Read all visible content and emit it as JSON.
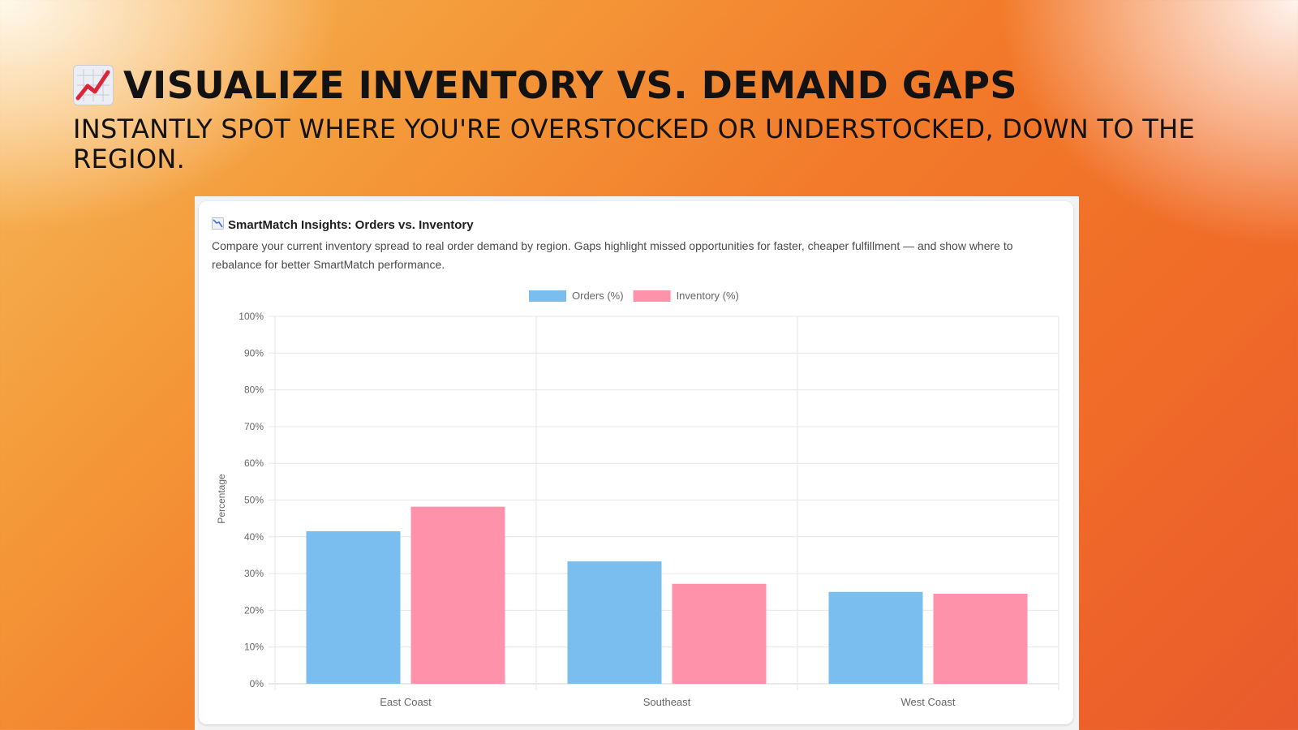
{
  "headline": {
    "icon": "chart-increasing-icon",
    "title": "VISUALIZE INVENTORY VS. DEMAND GAPS",
    "subtitle": "INSTANTLY SPOT WHERE YOU'RE OVERSTOCKED OR UNDERSTOCKED, DOWN TO THE REGION."
  },
  "card": {
    "icon": "chart-decreasing-icon",
    "title": "SmartMatch Insights: Orders vs. Inventory",
    "description": "Compare your current inventory spread to real order demand by region. Gaps highlight missed opportunities for faster, cheaper fulfillment — and show where to rebalance for better SmartMatch performance."
  },
  "chart_data": {
    "type": "bar",
    "categories": [
      "East Coast",
      "Southeast",
      "West Coast"
    ],
    "series": [
      {
        "name": "Orders (%)",
        "values": [
          41.5,
          33.3,
          25.0
        ],
        "color": "#7abdef"
      },
      {
        "name": "Inventory (%)",
        "values": [
          48.2,
          27.2,
          24.5
        ],
        "color": "#fd92aa"
      }
    ],
    "xlabel": "",
    "ylabel": "Percentage",
    "ylim": [
      0,
      100
    ],
    "y_ticks": [
      "0%",
      "10%",
      "20%",
      "30%",
      "40%",
      "50%",
      "60%",
      "70%",
      "80%",
      "90%",
      "100%"
    ],
    "grid": true,
    "legend_position": "top-center"
  }
}
